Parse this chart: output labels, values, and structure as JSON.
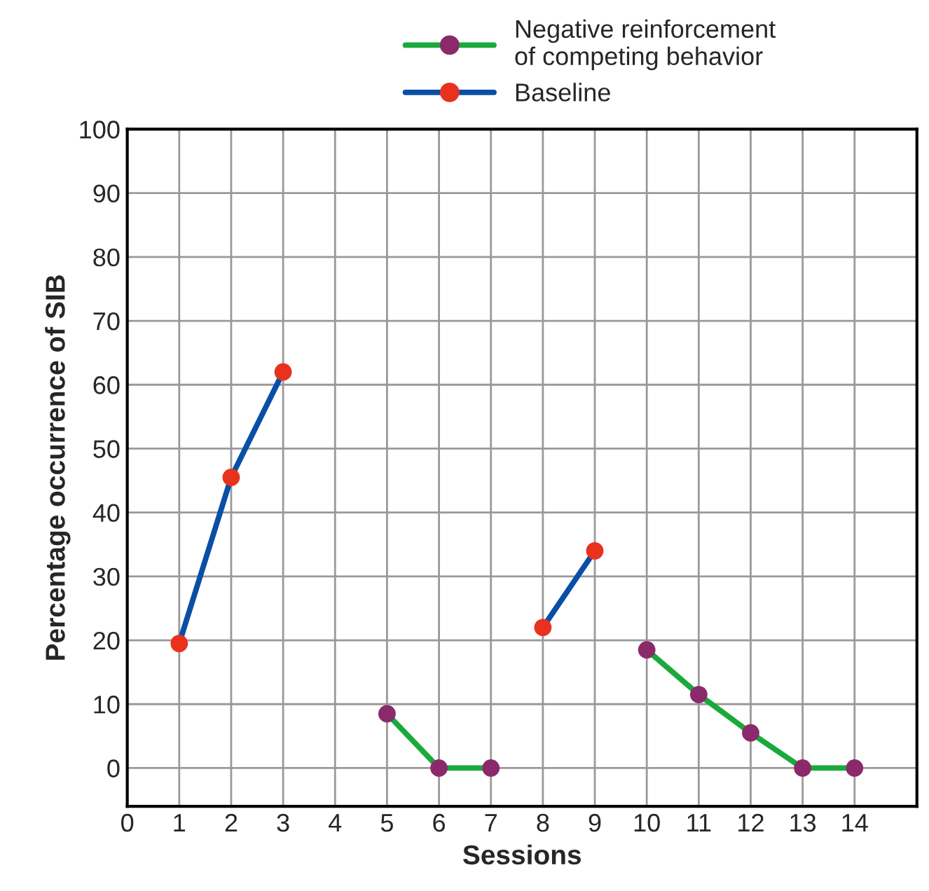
{
  "chart_data": {
    "type": "line",
    "xlabel": "Sessions",
    "ylabel": "Percentage occurrence of SIB",
    "x": [
      1,
      2,
      3,
      4,
      5,
      6,
      7,
      8,
      9,
      10,
      11,
      12,
      13,
      14
    ],
    "series": [
      {
        "name": "Negative reinforcement\nof competing behavior",
        "color": "#1aaa3c",
        "colors": [
          null,
          null,
          null,
          null,
          "#8b2a6b",
          "#8b2a6b",
          "#8b2a6b",
          null,
          null,
          "#8b2a6b",
          "#8b2a6b",
          "#8b2a6b",
          "#8b2a6b",
          "#8b2a6b"
        ],
        "values": [
          null,
          null,
          null,
          null,
          8.5,
          0,
          0,
          null,
          null,
          18.5,
          11.5,
          5.5,
          0,
          0
        ]
      },
      {
        "name": "Baseline",
        "color": "#0a4fa6",
        "colors": [
          "#e8321e",
          "#e8321e",
          "#e8321e",
          null,
          null,
          null,
          null,
          "#e8321e",
          "#e8321e",
          null,
          null,
          null,
          null,
          null
        ],
        "values": [
          19.5,
          45.5,
          62,
          null,
          null,
          null,
          null,
          22,
          34,
          null,
          null,
          null,
          null,
          null
        ]
      }
    ],
    "xlim": [
      0,
      15.2
    ],
    "xticks": [
      0,
      1,
      2,
      3,
      4,
      5,
      6,
      7,
      8,
      9,
      10,
      11,
      12,
      13,
      14
    ],
    "ylim": [
      -6,
      100
    ],
    "yticks": [
      0,
      10,
      20,
      30,
      40,
      50,
      60,
      70,
      80,
      90,
      100
    ],
    "grid": true,
    "legend": "top right",
    "marker": "circle",
    "line_style": "solid"
  }
}
